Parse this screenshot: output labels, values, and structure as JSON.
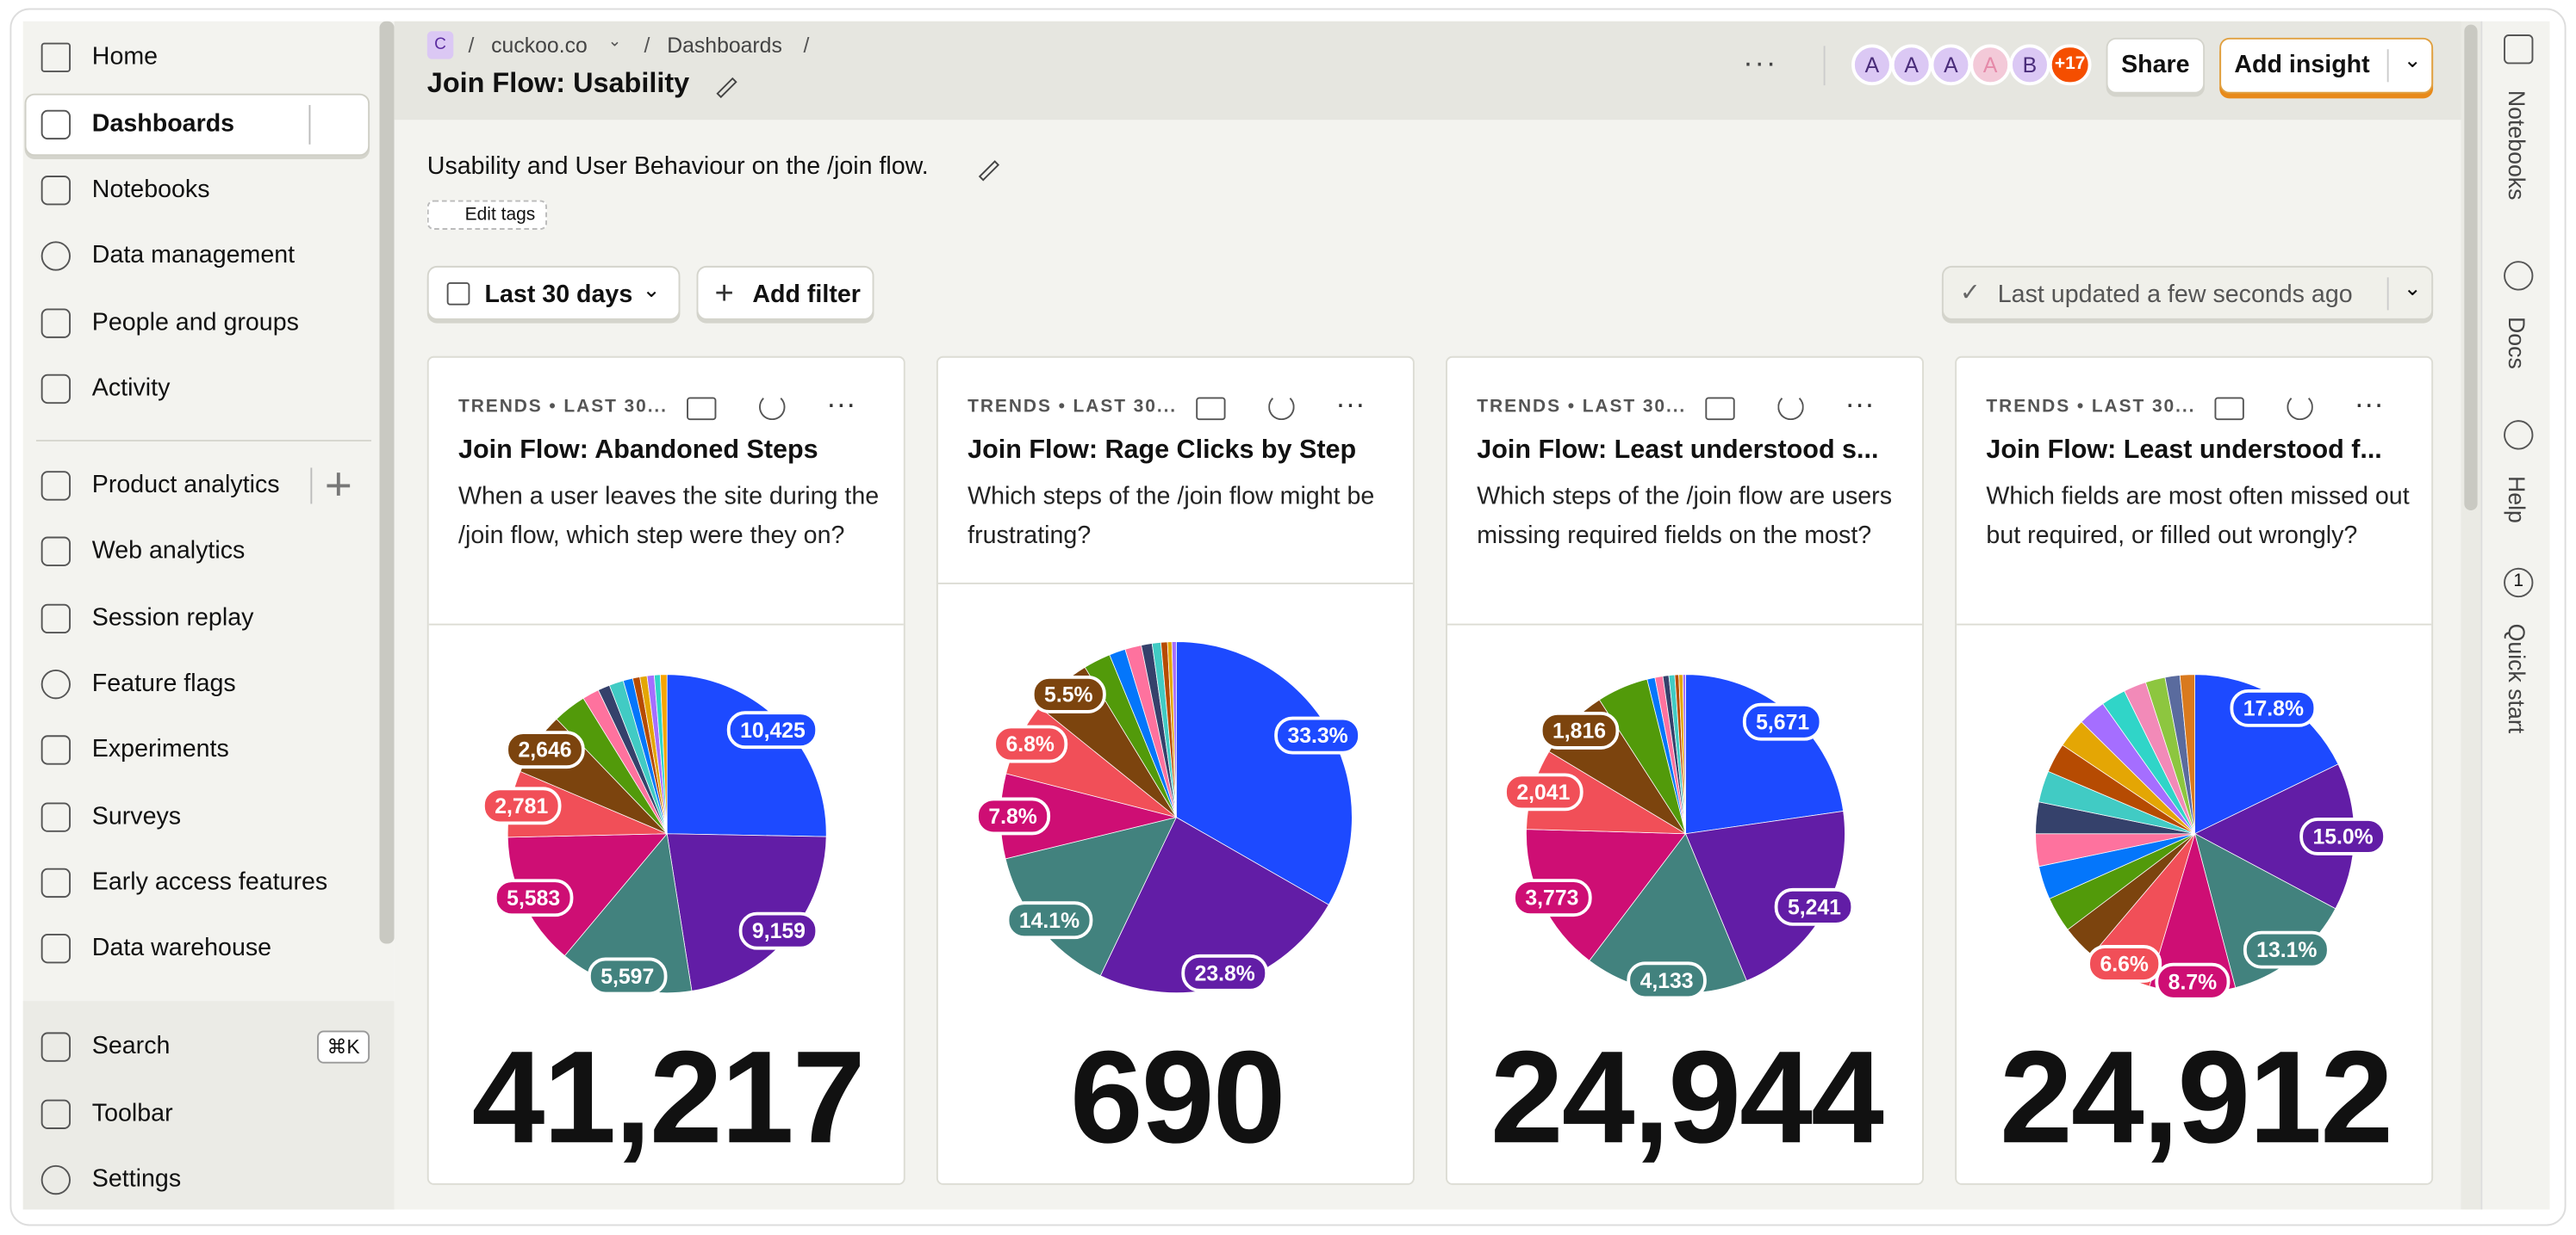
{
  "sidebar": {
    "items": [
      "Home",
      "Dashboards",
      "Notebooks",
      "Data management",
      "People and groups",
      "Activity"
    ],
    "products": [
      "Product analytics",
      "Web analytics",
      "Session replay",
      "Feature flags",
      "Experiments",
      "Surveys",
      "Early access features",
      "Data warehouse"
    ],
    "bottom": [
      "Search",
      "Toolbar",
      "Settings"
    ],
    "search_shortcut": "⌘K"
  },
  "header": {
    "project_initial": "C",
    "breadcrumb": [
      "cuckoo.co",
      "Dashboards"
    ],
    "title": "Join Flow: Usability",
    "avatars": [
      "A",
      "A",
      "A",
      "A",
      "B"
    ],
    "more_avatars": "+17",
    "share": "Share",
    "add_insight": "Add insight"
  },
  "description": "Usability and User Behaviour on the /join flow.",
  "edit_tags": "Edit tags",
  "date_filter": "Last 30 days",
  "add_filter": "Add filter",
  "last_updated": "Last updated a few seconds ago",
  "right_bar": {
    "items": [
      "Notebooks",
      "Docs",
      "Help",
      "Quick start"
    ],
    "quick_start_count": "1"
  },
  "cards": [
    {
      "kicker": "TRENDS • LAST 30...",
      "title": "Join Flow: Abandoned Steps",
      "description": "When a user leaves the site during the /join flow, which step were they on?",
      "total": "41,217",
      "pie": {
        "type": "pie",
        "values": [
          10425,
          9159,
          5597,
          5583,
          2781,
          2646,
          1400,
          700,
          500,
          600,
          400,
          300,
          300,
          300,
          250,
          276
        ],
        "value_labels": [
          "10,425",
          "9,159",
          "5,597",
          "5,583",
          "2,781",
          "2,646",
          null,
          null,
          null,
          null,
          null,
          null,
          null,
          null,
          null,
          null
        ],
        "colors": [
          "#1d4aff",
          "#621da6",
          "#42827e",
          "#ce0e74",
          "#f14f58",
          "#7c440e",
          "#529a0a",
          "#fe729e",
          "#35416b",
          "#41cbc4",
          "#0476fb",
          "#b64b02",
          "#e4a604",
          "#a56eff",
          "#30d5c8",
          "#f7a501"
        ]
      }
    },
    {
      "kicker": "TRENDS • LAST 30...",
      "title": "Join Flow: Rage Clicks by Step",
      "description": "Which steps of the /join flow might be frustrating?",
      "total": "690",
      "pie": {
        "type": "pie",
        "values": [
          33.3,
          23.8,
          14.1,
          7.8,
          6.8,
          5.5,
          2.5,
          1.5,
          1.5,
          1.0,
          0.8,
          0.6,
          0.4,
          0.4
        ],
        "value_labels": [
          "33.3%",
          "23.8%",
          "14.1%",
          "7.8%",
          "6.8%",
          "5.5%",
          null,
          null,
          null,
          null,
          null,
          null,
          null,
          null
        ],
        "colors": [
          "#1d4aff",
          "#621da6",
          "#42827e",
          "#ce0e74",
          "#f14f58",
          "#7c440e",
          "#529a0a",
          "#0476fb",
          "#fe729e",
          "#35416b",
          "#41cbc4",
          "#b64b02",
          "#e4a604",
          "#a56eff"
        ]
      }
    },
    {
      "kicker": "TRENDS • LAST 30...",
      "title": "Join Flow: Least understood s...",
      "description": "Which steps of the /join flow are users missing required fields on the most?",
      "total": "24,944",
      "pie": {
        "type": "pie",
        "values": [
          5671,
          5241,
          4133,
          3773,
          2041,
          1816,
          1300,
          200,
          200,
          150,
          150,
          100,
          100,
          69
        ],
        "value_labels": [
          "5,671",
          "5,241",
          "4,133",
          "3,773",
          "2,041",
          "1,816",
          null,
          null,
          null,
          null,
          null,
          null,
          null,
          null
        ],
        "colors": [
          "#1d4aff",
          "#621da6",
          "#42827e",
          "#ce0e74",
          "#f14f58",
          "#7c440e",
          "#529a0a",
          "#0476fb",
          "#fe729e",
          "#35416b",
          "#41cbc4",
          "#b64b02",
          "#e4a604",
          "#a56eff"
        ]
      }
    },
    {
      "kicker": "TRENDS • LAST 30...",
      "title": "Join Flow: Least understood f...",
      "description": "Which fields are most often missed out but required, or filled out wrongly?",
      "total": "24,912",
      "pie": {
        "type": "pie",
        "values": [
          17.8,
          15.0,
          13.1,
          8.7,
          6.6,
          3.5,
          3.6,
          3.4,
          3.3,
          3.2,
          3.2,
          3.0,
          3.0,
          2.8,
          2.5,
          2.3,
          2.0,
          1.5,
          1.5
        ],
        "value_labels": [
          "17.8%",
          "15.0%",
          "13.1%",
          "8.7%",
          "6.6%",
          null,
          null,
          null,
          null,
          null,
          null,
          null,
          null,
          null,
          null,
          null,
          null,
          null,
          null
        ],
        "colors": [
          "#1d4aff",
          "#621da6",
          "#42827e",
          "#ce0e74",
          "#f14f58",
          "#7c440e",
          "#529a0a",
          "#0476fb",
          "#fe729e",
          "#35416b",
          "#41cbc4",
          "#b64b02",
          "#e4a604",
          "#a56eff",
          "#30d5c8",
          "#f28ab8",
          "#8dc63f",
          "#5a6b9e",
          "#d97a1e"
        ]
      }
    }
  ]
}
